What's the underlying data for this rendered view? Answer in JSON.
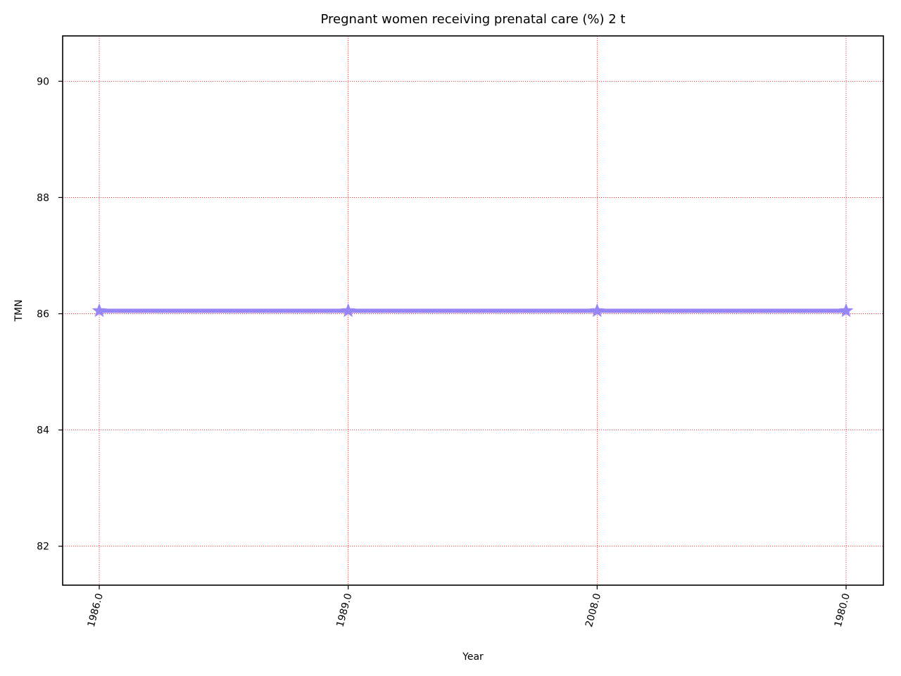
{
  "chart_data": {
    "type": "line",
    "title": "Pregnant women receiving prenatal care (%) 2 t",
    "xlabel": "Year",
    "ylabel": "TMN",
    "categories": [
      "1986.0",
      "1989.0",
      "2008.0",
      "1980.0"
    ],
    "series": [
      {
        "values": [
          86.05,
          86.05,
          86.05,
          86.05
        ],
        "color": "#9787f5",
        "marker": "star"
      }
    ],
    "ylim": [
      81.33,
      90.78
    ],
    "yticks": [
      82,
      84,
      86,
      88,
      90
    ],
    "ytick_labels": [
      "82",
      "84",
      "86",
      "88",
      "90"
    ],
    "grid": true,
    "grid_color": "#d62728",
    "legend": false,
    "x_tick_rotation": "rotated-75"
  }
}
